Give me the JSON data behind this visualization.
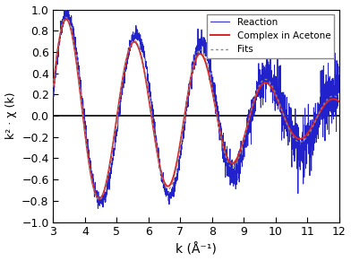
{
  "title": "",
  "xlabel": "k (Å⁻¹)",
  "ylabel": "k² · χ (k)",
  "xlim": [
    3,
    12
  ],
  "ylim": [
    -1.0,
    1.0
  ],
  "yticks": [
    -1.0,
    -0.8,
    -0.6,
    -0.4,
    -0.2,
    0.0,
    0.2,
    0.4,
    0.6,
    0.8,
    1.0
  ],
  "xticks": [
    3,
    4,
    5,
    6,
    7,
    8,
    9,
    10,
    11,
    12
  ],
  "legend_entries": [
    "Complex in Acetone",
    "Reaction",
    "Fits"
  ],
  "line_colors": [
    "#dd2222",
    "#2222cc",
    "#888888"
  ],
  "background_color": "#ffffff",
  "figsize": [
    3.92,
    2.91
  ],
  "dpi": 100
}
